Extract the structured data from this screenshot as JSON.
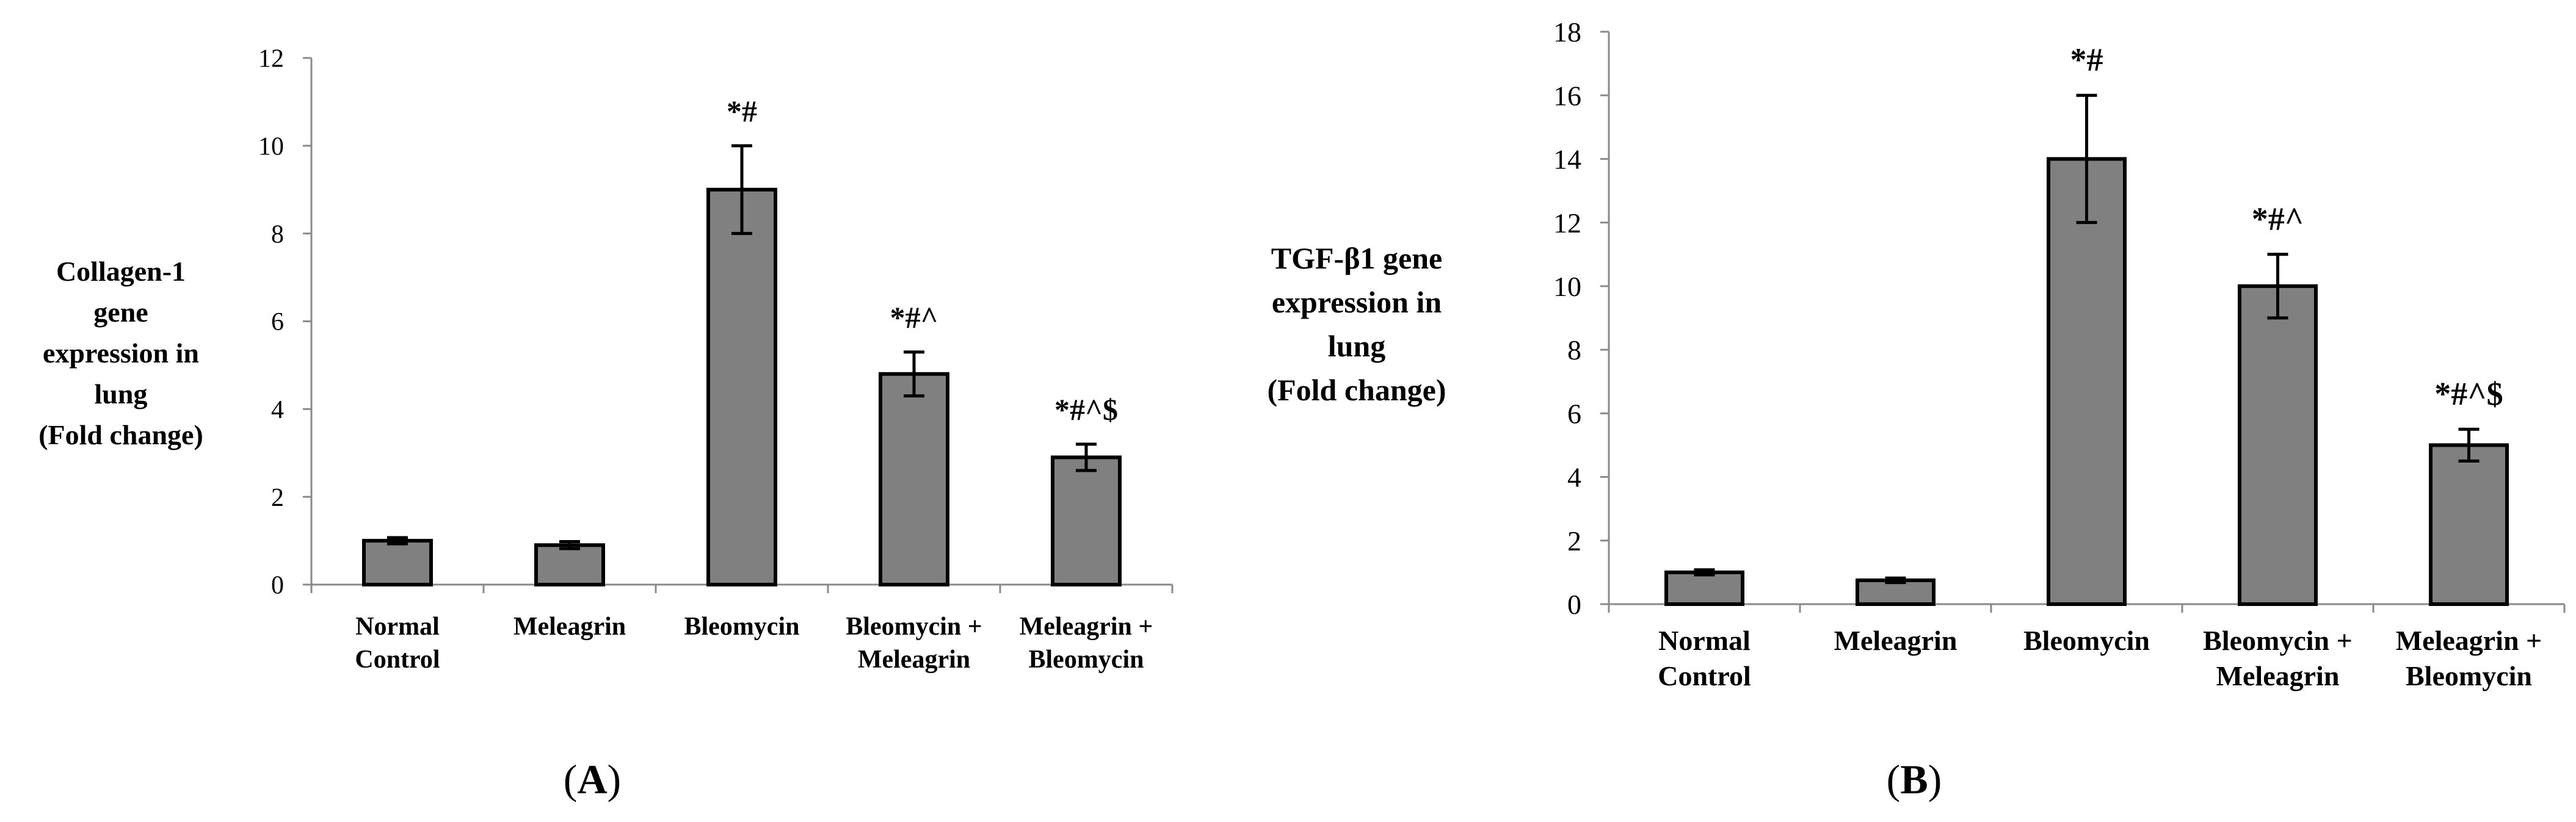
{
  "chart_data": [
    {
      "type": "bar",
      "panel_label": "(A)",
      "ylabel_lines": [
        "Collagen-1",
        "gene",
        "expression in",
        "lung",
        "(Fold change)"
      ],
      "categories": [
        [
          "Normal",
          "Control"
        ],
        [
          "Meleagrin"
        ],
        [
          "Bleomycin"
        ],
        [
          "Bleomycin +",
          "Meleagrin"
        ],
        [
          "Meleagrin +",
          "Bleomycin"
        ]
      ],
      "values": [
        1.0,
        0.9,
        9.0,
        4.8,
        2.9
      ],
      "errors": [
        0.07,
        0.08,
        1.0,
        0.5,
        0.3
      ],
      "significance": [
        "",
        "",
        "*#",
        "*#^",
        "*#^$"
      ],
      "ylim": [
        0,
        12
      ],
      "yticks": [
        0,
        2,
        4,
        6,
        8,
        10,
        12
      ],
      "bar_color": "#808080",
      "grid": false
    },
    {
      "type": "bar",
      "panel_label": "(B)",
      "ylabel_lines": [
        "TGF-β1 gene",
        "expression in",
        "lung",
        "(Fold change)"
      ],
      "categories": [
        [
          "Normal",
          "Control"
        ],
        [
          "Meleagrin"
        ],
        [
          "Bleomycin"
        ],
        [
          "Bleomycin +",
          "Meleagrin"
        ],
        [
          "Meleagrin +",
          "Bleomycin"
        ]
      ],
      "values": [
        1.0,
        0.75,
        14.0,
        10.0,
        5.0
      ],
      "errors": [
        0.08,
        0.07,
        2.0,
        1.0,
        0.5
      ],
      "significance": [
        "",
        "",
        "*#",
        "*#^",
        "*#^$"
      ],
      "ylim": [
        0,
        18
      ],
      "yticks": [
        0,
        2,
        4,
        6,
        8,
        10,
        12,
        14,
        16,
        18
      ],
      "bar_color": "#808080",
      "grid": false
    }
  ]
}
